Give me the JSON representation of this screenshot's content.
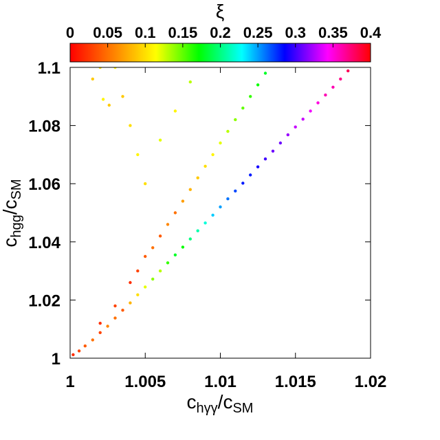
{
  "chart_data": {
    "type": "scatter",
    "title": "",
    "xlabel": {
      "base": "c",
      "sub": "hγγ",
      "sep": "/c",
      "sub2": "SM"
    },
    "ylabel": {
      "base": "c",
      "sub": "hgg",
      "sep": "/c",
      "sub2": "SM"
    },
    "xlim": [
      1.0,
      1.02
    ],
    "ylim": [
      1.0,
      1.1
    ],
    "xticks": [
      1.0,
      1.005,
      1.01,
      1.015,
      1.02
    ],
    "xtick_labels": [
      "1",
      "1.005",
      "1.01",
      "1.015",
      "1.02"
    ],
    "yticks": [
      1.0,
      1.02,
      1.04,
      1.06,
      1.08,
      1.1
    ],
    "ytick_labels": [
      "1",
      "1.02",
      "1.04",
      "1.06",
      "1.08",
      "1.1"
    ],
    "grid": false,
    "colorbar": {
      "label": "ξ",
      "range": [
        0,
        0.4
      ],
      "ticks": [
        0,
        0.05,
        0.1,
        0.15,
        0.2,
        0.25,
        0.3,
        0.35,
        0.4
      ],
      "tick_labels": [
        "0",
        "0.05",
        "0.1",
        "0.15",
        "0.2",
        "0.25",
        "0.3",
        "0.35",
        "0.4"
      ],
      "colormap": [
        "#ff0000",
        "#ff8000",
        "#ffff00",
        "#00ff00",
        "#00ffff",
        "#0000ff",
        "#ff00ff",
        "#ff0000"
      ]
    },
    "series": [
      {
        "points": [
          [
            1.0002,
            1.0012,
            0.02
          ],
          [
            1.0006,
            1.0025,
            0.03
          ],
          [
            1.001,
            1.0042,
            0.04
          ],
          [
            1.0015,
            1.0063,
            0.05
          ],
          [
            1.002,
            1.0088,
            0.03
          ],
          [
            1.0025,
            1.011,
            0.06
          ],
          [
            1.003,
            1.0138,
            0.05
          ],
          [
            1.0035,
            1.0165,
            0.04
          ],
          [
            1.004,
            1.019,
            0.08
          ],
          [
            1.0045,
            1.0218,
            0.1
          ],
          [
            1.005,
            1.0245,
            0.12
          ],
          [
            1.0055,
            1.0272,
            0.14
          ],
          [
            1.006,
            1.03,
            0.13
          ],
          [
            1.0065,
            1.0328,
            0.16
          ],
          [
            1.007,
            1.0355,
            0.18
          ],
          [
            1.0075,
            1.0382,
            0.17
          ],
          [
            1.008,
            1.041,
            0.2
          ],
          [
            1.0085,
            1.0438,
            0.21
          ],
          [
            1.009,
            1.0465,
            0.22
          ],
          [
            1.0095,
            1.0492,
            0.24
          ],
          [
            1.01,
            1.052,
            0.25
          ],
          [
            1.0105,
            1.0548,
            0.26
          ],
          [
            1.011,
            1.0575,
            0.27
          ],
          [
            1.0115,
            1.0602,
            0.28
          ],
          [
            1.012,
            1.063,
            0.28
          ],
          [
            1.0125,
            1.0658,
            0.29
          ],
          [
            1.013,
            1.0685,
            0.3
          ],
          [
            1.0135,
            1.0712,
            0.31
          ],
          [
            1.014,
            1.074,
            0.31
          ],
          [
            1.0145,
            1.0768,
            0.32
          ],
          [
            1.015,
            1.0795,
            0.33
          ],
          [
            1.0155,
            1.0822,
            0.33
          ],
          [
            1.016,
            1.085,
            0.34
          ],
          [
            1.0165,
            1.0878,
            0.35
          ],
          [
            1.017,
            1.0905,
            0.36
          ],
          [
            1.0175,
            1.0932,
            0.36
          ],
          [
            1.018,
            1.096,
            0.37
          ],
          [
            1.0185,
            1.0988,
            0.38
          ],
          [
            1.019,
            1.101,
            0.38
          ],
          [
            1.0193,
            1.1025,
            0.39
          ],
          [
            1.002,
            1.012,
            0.02
          ],
          [
            1.003,
            1.018,
            0.03
          ],
          [
            1.004,
            1.026,
            0.02
          ],
          [
            1.0045,
            1.03,
            0.03
          ],
          [
            1.005,
            1.035,
            0.04
          ],
          [
            1.0055,
            1.038,
            0.05
          ],
          [
            1.006,
            1.042,
            0.04
          ],
          [
            1.0065,
            1.046,
            0.06
          ],
          [
            1.007,
            1.05,
            0.05
          ],
          [
            1.0075,
            1.054,
            0.07
          ],
          [
            1.008,
            1.058,
            0.08
          ],
          [
            1.0085,
            1.062,
            0.09
          ],
          [
            1.009,
            1.066,
            0.1
          ],
          [
            1.0095,
            1.07,
            0.11
          ],
          [
            1.01,
            1.074,
            0.12
          ],
          [
            1.0105,
            1.078,
            0.13
          ],
          [
            1.011,
            1.082,
            0.14
          ],
          [
            1.0115,
            1.086,
            0.15
          ],
          [
            1.012,
            1.09,
            0.16
          ],
          [
            1.0125,
            1.094,
            0.17
          ],
          [
            1.013,
            1.098,
            0.18
          ],
          [
            1.0135,
            1.101,
            0.19
          ],
          [
            1.014,
            1.102,
            0.2
          ],
          [
            1.015,
            1.1022,
            0.22
          ],
          [
            1.016,
            1.102,
            0.26
          ],
          [
            1.017,
            1.1018,
            0.3
          ],
          [
            1.018,
            1.1022,
            0.33
          ],
          [
            1.0188,
            1.102,
            0.36
          ],
          [
            1.005,
            1.06,
            0.1
          ],
          [
            1.0045,
            1.07,
            0.11
          ],
          [
            1.004,
            1.08,
            0.1
          ],
          [
            1.0035,
            1.09,
            0.09
          ],
          [
            1.003,
            1.1,
            0.11
          ],
          [
            1.0025,
            1.103,
            0.12
          ],
          [
            1.002,
            1.1,
            0.1
          ],
          [
            1.0015,
            1.096,
            0.09
          ],
          [
            1.001,
            1.101,
            0.08
          ],
          [
            1.0008,
            1.1015,
            0.1
          ],
          [
            1.0026,
            1.087,
            0.09
          ],
          [
            1.0022,
            1.089,
            0.11
          ],
          [
            1.006,
            1.075,
            0.12
          ],
          [
            1.007,
            1.085,
            0.11
          ],
          [
            1.008,
            1.095,
            0.13
          ],
          [
            1.009,
            1.101,
            0.12
          ],
          [
            1.01,
            1.102,
            0.14
          ],
          [
            1.011,
            1.1022,
            0.15
          ],
          [
            1.012,
            1.102,
            0.16
          ],
          [
            1.013,
            1.1021,
            0.18
          ]
        ]
      }
    ]
  }
}
